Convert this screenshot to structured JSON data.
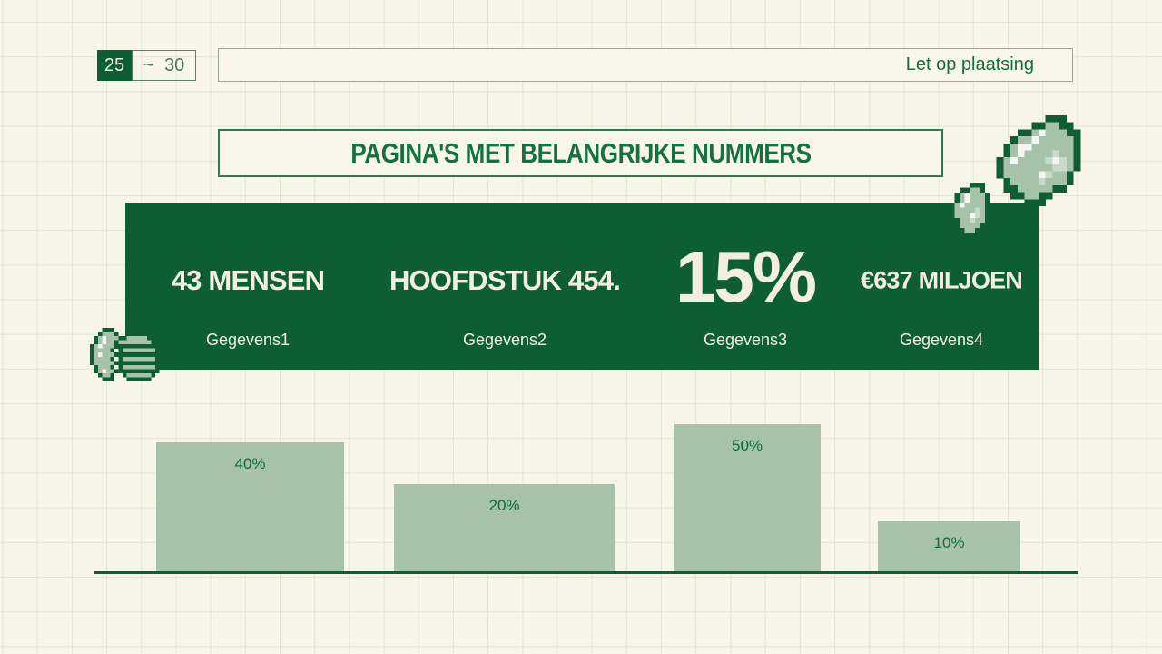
{
  "slide": {
    "page_range": {
      "current": "25",
      "separator": "~",
      "total": "30"
    },
    "note": "Let op plaatsing",
    "title": "PAGINA'S MET BELANGRIJKE NUMMERS"
  },
  "stats": [
    {
      "value": "43 MENSEN",
      "label": "Gegevens1"
    },
    {
      "value": "HOOFDSTUK 454.",
      "label": "Gegevens2"
    },
    {
      "value": "15%",
      "label": "Gegevens3"
    },
    {
      "value": "€637 MILJOEN",
      "label": "Gegevens4"
    }
  ],
  "chart_data": {
    "type": "bar",
    "values": [
      40,
      20,
      50,
      10
    ],
    "labels": [
      "40%",
      "20%",
      "50%",
      "10%"
    ],
    "title": "",
    "xlabel": "",
    "ylabel": "",
    "ylim": [
      0,
      55
    ],
    "grid": false,
    "legend": false,
    "bar_color": "#a6c2a8",
    "label_color": "#0d6b3c",
    "baseline_color": "#0d5f33"
  },
  "colors": {
    "background": "#f8f6e9",
    "grid_line": "#e4e3d3",
    "dark_green": "#0d5f33",
    "text_green": "#15713f",
    "sage": "#a6c2a8",
    "cream_text": "#f2efe0"
  },
  "decorations": {
    "coins": "pixel-coins-icon",
    "gem_large": "pixel-gem-icon",
    "gem_small": "pixel-gem-small-icon"
  }
}
